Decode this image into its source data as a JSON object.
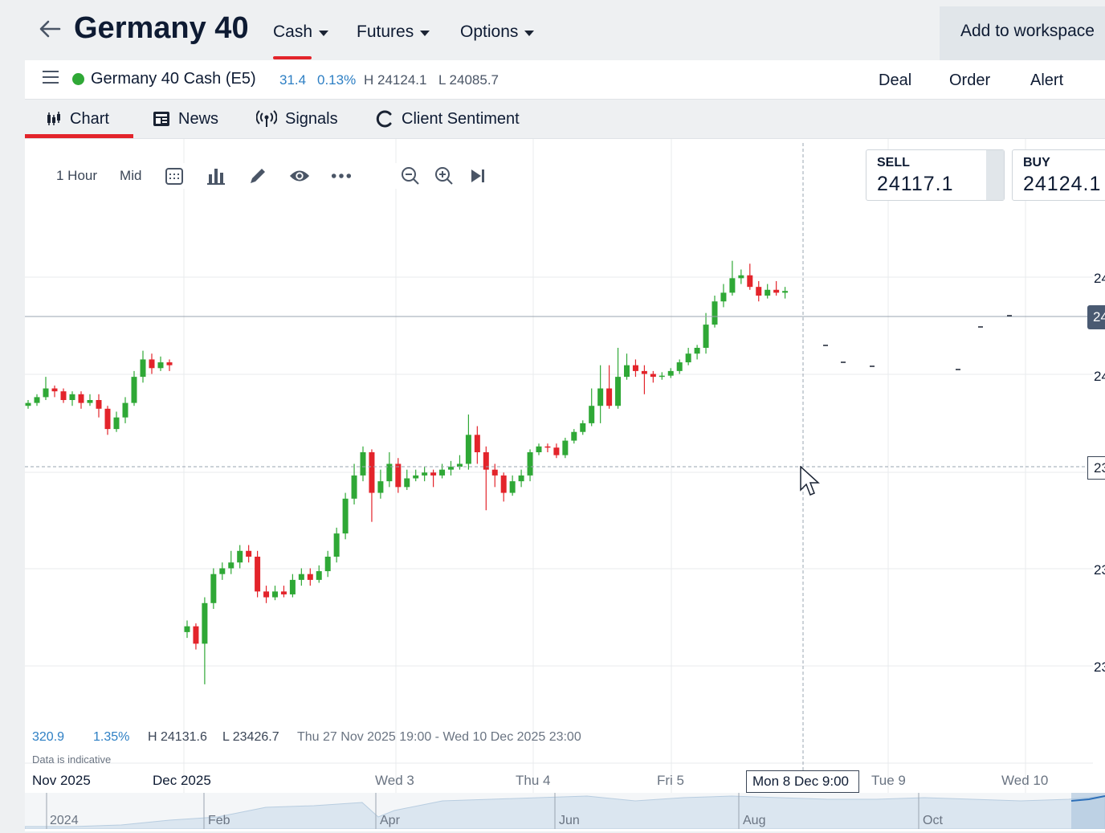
{
  "header": {
    "title": "Germany 40",
    "tabs": [
      {
        "label": "Cash"
      },
      {
        "label": "Futures"
      },
      {
        "label": "Options"
      }
    ],
    "add_workspace": "Add to workspace"
  },
  "instrument": {
    "name": "Germany 40 Cash (E5)",
    "change": "31.4",
    "change_pct": "0.13%",
    "high": "H 24124.1",
    "low": "L 24085.7",
    "actions": {
      "deal": "Deal",
      "order": "Order",
      "alert": "Alert"
    }
  },
  "tabs": {
    "chart": "Chart",
    "news": "News",
    "signals": "Signals",
    "sentiment": "Client Sentiment"
  },
  "toolbar": {
    "interval": "1 Hour",
    "price_type": "Mid"
  },
  "quote": {
    "sell_label": "SELL",
    "sell_value": "24117.1",
    "buy_label": "BUY",
    "buy_value": "24124.1"
  },
  "stats": {
    "change": "320.9",
    "change_pct": "1.35%",
    "high": "H 24131.6",
    "low": "L 23426.7",
    "range": "Thu 27 Nov 2025 19:00 - Wed 10 Dec 2025 23:00",
    "note": "Data is indicative"
  },
  "x_labels": {
    "nov": "Nov 2025",
    "dec": "Dec 2025",
    "wed3": "Wed 3",
    "thu4": "Thu 4",
    "fri5": "Fri 5",
    "cursor": "Mon 8 Dec 9:00",
    "tue9": "Tue 9",
    "wed10": "Wed 10"
  },
  "y_labels": [
    "24",
    "24",
    "24",
    "23",
    "23",
    "23"
  ],
  "navigator": {
    "labels": [
      "2024",
      "Feb",
      "Apr",
      "Jun",
      "Aug",
      "Oct"
    ]
  },
  "colors": {
    "up": "#2fa836",
    "down": "#e3242b",
    "accent": "#e3242b",
    "link": "#2d7fc4"
  },
  "chart_data": {
    "type": "candlestick",
    "interval": "1 Hour",
    "x_range": [
      "Thu 27 Nov 2025 19:00",
      "Wed 10 Dec 2025 23:00"
    ],
    "summary": {
      "change": 320.9,
      "change_pct": 1.35,
      "high": 24131.6,
      "low": 23426.7
    },
    "bars": [
      {
        "o": 23980,
        "c": 23985,
        "h": 23990,
        "l": 23975
      },
      {
        "o": 23985,
        "c": 23995,
        "h": 24000,
        "l": 23980
      },
      {
        "o": 23995,
        "c": 24010,
        "h": 24030,
        "l": 23990
      },
      {
        "o": 24010,
        "c": 24005,
        "h": 24015,
        "l": 23995
      },
      {
        "o": 24005,
        "c": 23990,
        "h": 24010,
        "l": 23985
      },
      {
        "o": 23990,
        "c": 24000,
        "h": 24005,
        "l": 23980
      },
      {
        "o": 24000,
        "c": 23985,
        "h": 24005,
        "l": 23975
      },
      {
        "o": 23985,
        "c": 23990,
        "h": 24000,
        "l": 23980
      },
      {
        "o": 23990,
        "c": 23975,
        "h": 24000,
        "l": 23960
      },
      {
        "o": 23975,
        "c": 23940,
        "h": 23980,
        "l": 23930
      },
      {
        "o": 23940,
        "c": 23960,
        "h": 23970,
        "l": 23935
      },
      {
        "o": 23960,
        "c": 23985,
        "h": 23995,
        "l": 23950
      },
      {
        "o": 23985,
        "c": 24030,
        "h": 24040,
        "l": 23980
      },
      {
        "o": 24030,
        "c": 24060,
        "h": 24075,
        "l": 24020
      },
      {
        "o": 24060,
        "c": 24045,
        "h": 24070,
        "l": 24035
      },
      {
        "o": 24045,
        "c": 24055,
        "h": 24065,
        "l": 24040
      },
      {
        "o": 24055,
        "c": 24050,
        "h": 24060,
        "l": 24040
      },
      {
        "o": 23590,
        "c": 23600,
        "h": 23610,
        "l": 23580
      },
      {
        "o": 23600,
        "c": 23570,
        "h": 23605,
        "l": 23560
      },
      {
        "o": 23570,
        "c": 23640,
        "h": 23650,
        "l": 23500
      },
      {
        "o": 23640,
        "c": 23690,
        "h": 23700,
        "l": 23630
      },
      {
        "o": 23690,
        "c": 23700,
        "h": 23710,
        "l": 23680
      },
      {
        "o": 23700,
        "c": 23710,
        "h": 23730,
        "l": 23690
      },
      {
        "o": 23710,
        "c": 23730,
        "h": 23740,
        "l": 23700
      },
      {
        "o": 23730,
        "c": 23720,
        "h": 23740,
        "l": 23710
      },
      {
        "o": 23720,
        "c": 23660,
        "h": 23730,
        "l": 23650
      },
      {
        "o": 23660,
        "c": 23650,
        "h": 23670,
        "l": 23640
      },
      {
        "o": 23650,
        "c": 23660,
        "h": 23670,
        "l": 23645
      },
      {
        "o": 23660,
        "c": 23655,
        "h": 23670,
        "l": 23650
      },
      {
        "o": 23655,
        "c": 23680,
        "h": 23690,
        "l": 23650
      },
      {
        "o": 23680,
        "c": 23690,
        "h": 23700,
        "l": 23670
      },
      {
        "o": 23690,
        "c": 23680,
        "h": 23700,
        "l": 23670
      },
      {
        "o": 23680,
        "c": 23695,
        "h": 23705,
        "l": 23675
      },
      {
        "o": 23695,
        "c": 23720,
        "h": 23730,
        "l": 23685
      },
      {
        "o": 23720,
        "c": 23760,
        "h": 23770,
        "l": 23710
      },
      {
        "o": 23760,
        "c": 23820,
        "h": 23830,
        "l": 23750
      },
      {
        "o": 23820,
        "c": 23860,
        "h": 23880,
        "l": 23810
      },
      {
        "o": 23860,
        "c": 23900,
        "h": 23910,
        "l": 23850
      },
      {
        "o": 23900,
        "c": 23830,
        "h": 23905,
        "l": 23780
      },
      {
        "o": 23830,
        "c": 23850,
        "h": 23870,
        "l": 23820
      },
      {
        "o": 23850,
        "c": 23880,
        "h": 23900,
        "l": 23840
      },
      {
        "o": 23880,
        "c": 23840,
        "h": 23890,
        "l": 23830
      },
      {
        "o": 23840,
        "c": 23855,
        "h": 23870,
        "l": 23835
      },
      {
        "o": 23855,
        "c": 23860,
        "h": 23870,
        "l": 23850
      },
      {
        "o": 23860,
        "c": 23865,
        "h": 23875,
        "l": 23850
      },
      {
        "o": 23865,
        "c": 23860,
        "h": 23870,
        "l": 23840
      },
      {
        "o": 23860,
        "c": 23870,
        "h": 23880,
        "l": 23855
      },
      {
        "o": 23870,
        "c": 23875,
        "h": 23885,
        "l": 23860
      },
      {
        "o": 23875,
        "c": 23880,
        "h": 23895,
        "l": 23870
      },
      {
        "o": 23880,
        "c": 23930,
        "h": 23965,
        "l": 23870
      },
      {
        "o": 23930,
        "c": 23900,
        "h": 23945,
        "l": 23880
      },
      {
        "o": 23900,
        "c": 23870,
        "h": 23910,
        "l": 23800
      },
      {
        "o": 23870,
        "c": 23860,
        "h": 23880,
        "l": 23840
      },
      {
        "o": 23860,
        "c": 23830,
        "h": 23865,
        "l": 23815
      },
      {
        "o": 23830,
        "c": 23850,
        "h": 23860,
        "l": 23825
      },
      {
        "o": 23850,
        "c": 23860,
        "h": 23870,
        "l": 23840
      },
      {
        "o": 23860,
        "c": 23900,
        "h": 23905,
        "l": 23850
      },
      {
        "o": 23900,
        "c": 23910,
        "h": 23915,
        "l": 23895
      },
      {
        "o": 23910,
        "c": 23908,
        "h": 23915,
        "l": 23900
      },
      {
        "o": 23908,
        "c": 23895,
        "h": 23915,
        "l": 23890
      },
      {
        "o": 23895,
        "c": 23920,
        "h": 23925,
        "l": 23890
      },
      {
        "o": 23920,
        "c": 23935,
        "h": 23940,
        "l": 23915
      },
      {
        "o": 23935,
        "c": 23950,
        "h": 23955,
        "l": 23930
      },
      {
        "o": 23950,
        "c": 23980,
        "h": 24010,
        "l": 23945
      },
      {
        "o": 23980,
        "c": 24010,
        "h": 24050,
        "l": 23950
      },
      {
        "o": 24010,
        "c": 23980,
        "h": 24050,
        "l": 23975
      },
      {
        "o": 23980,
        "c": 24030,
        "h": 24080,
        "l": 23975
      },
      {
        "o": 24030,
        "c": 24050,
        "h": 24070,
        "l": 24025
      },
      {
        "o": 24050,
        "c": 24040,
        "h": 24060,
        "l": 24030
      },
      {
        "o": 24040,
        "c": 24035,
        "h": 24050,
        "l": 24000
      },
      {
        "o": 24035,
        "c": 24030,
        "h": 24040,
        "l": 24020
      },
      {
        "o": 24030,
        "c": 24032,
        "h": 24038,
        "l": 24025
      },
      {
        "o": 24032,
        "c": 24040,
        "h": 24045,
        "l": 24028
      },
      {
        "o": 24040,
        "c": 24055,
        "h": 24060,
        "l": 24035
      },
      {
        "o": 24055,
        "c": 24070,
        "h": 24080,
        "l": 24050
      },
      {
        "o": 24070,
        "c": 24080,
        "h": 24085,
        "l": 24060
      },
      {
        "o": 24080,
        "c": 24120,
        "h": 24140,
        "l": 24070
      },
      {
        "o": 24120,
        "c": 24160,
        "h": 24170,
        "l": 24115
      },
      {
        "o": 24160,
        "c": 24175,
        "h": 24190,
        "l": 24150
      },
      {
        "o": 24175,
        "c": 24200,
        "h": 24230,
        "l": 24170
      },
      {
        "o": 24200,
        "c": 24205,
        "h": 24215,
        "l": 24190
      },
      {
        "o": 24205,
        "c": 24185,
        "h": 24225,
        "l": 24180
      },
      {
        "o": 24185,
        "c": 24170,
        "h": 24195,
        "l": 24160
      },
      {
        "o": 24170,
        "c": 24180,
        "h": 24190,
        "l": 24165
      },
      {
        "o": 24180,
        "c": 24175,
        "h": 24195,
        "l": 24170
      },
      {
        "o": 24175,
        "c": 24178,
        "h": 24185,
        "l": 24165
      }
    ]
  }
}
